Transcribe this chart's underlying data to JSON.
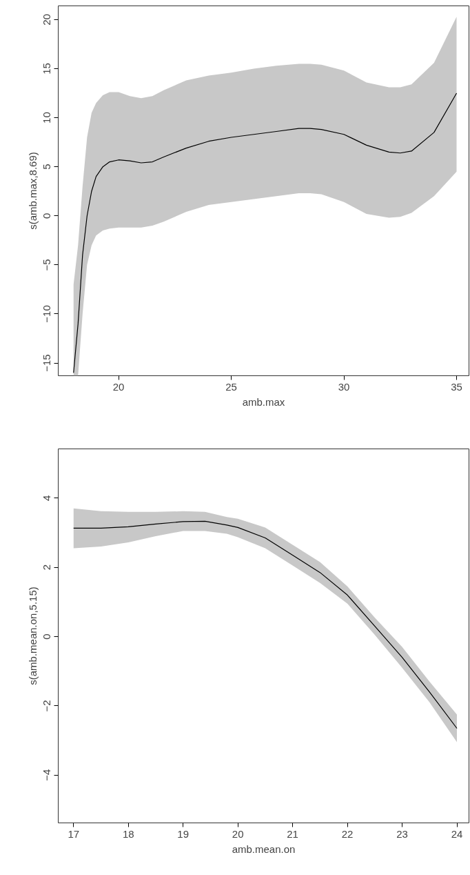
{
  "chart_data": [
    {
      "type": "line",
      "xlabel": "amb.max",
      "ylabel": "s(amb.max,8.69)",
      "xlim": [
        17.32,
        35.55
      ],
      "ylim": [
        -16.3,
        21.4
      ],
      "xticks": [
        20,
        25,
        30,
        35
      ],
      "yticks": [
        -15,
        -10,
        -5,
        0,
        5,
        10,
        15,
        20
      ],
      "grid": false,
      "x": [
        18.0,
        18.2,
        18.4,
        18.6,
        18.8,
        19.0,
        19.3,
        19.6,
        20.0,
        20.5,
        21.0,
        21.5,
        22,
        23,
        24,
        25,
        26,
        27,
        28,
        28.5,
        29,
        30,
        31,
        32,
        32.5,
        33,
        34,
        35
      ],
      "series": [
        {
          "color": "#000000",
          "values": [
            -16,
            -11,
            -4,
            0,
            2.5,
            4,
            5,
            5.5,
            5.7,
            5.6,
            5.4,
            5.5,
            6,
            6.9,
            7.6,
            8,
            8.3,
            8.6,
            8.9,
            8.9,
            8.8,
            8.3,
            7.2,
            6.5,
            6.4,
            6.6,
            8.5,
            12.5
          ],
          "lower": [
            -16.3,
            -16.3,
            -10,
            -5,
            -3,
            -2,
            -1.5,
            -1.3,
            -1.2,
            -1.2,
            -1.2,
            -1.0,
            -0.6,
            0.4,
            1.1,
            1.4,
            1.7,
            2.0,
            2.3,
            2.3,
            2.2,
            1.4,
            0.2,
            -0.2,
            -0.1,
            0.3,
            2,
            4.5
          ],
          "upper": [
            -7,
            -3,
            3,
            8,
            10.5,
            11.5,
            12.3,
            12.6,
            12.6,
            12.2,
            12,
            12.2,
            12.8,
            13.8,
            14.3,
            14.6,
            15,
            15.3,
            15.5,
            15.5,
            15.4,
            14.8,
            13.6,
            13.1,
            13.1,
            13.4,
            15.6,
            20.3
          ]
        }
      ]
    },
    {
      "type": "line",
      "xlabel": "amb.mean.on",
      "ylabel": "s(amb.mean.on,5.15)",
      "xlim": [
        16.72,
        24.22
      ],
      "ylim": [
        -5.38,
        5.42
      ],
      "xticks": [
        17,
        18,
        19,
        20,
        21,
        22,
        23,
        24
      ],
      "yticks": [
        -4,
        -2,
        0,
        2,
        4
      ],
      "grid": false,
      "x": [
        17,
        17.5,
        18,
        18.5,
        19,
        19.4,
        19.8,
        20,
        20.5,
        21,
        21.5,
        22,
        22.5,
        23,
        23.5,
        24
      ],
      "series": [
        {
          "color": "#000000",
          "values": [
            3.13,
            3.13,
            3.17,
            3.25,
            3.32,
            3.33,
            3.22,
            3.15,
            2.85,
            2.35,
            1.85,
            1.2,
            0.3,
            -0.6,
            -1.6,
            -2.65
          ],
          "lower": [
            2.55,
            2.6,
            2.72,
            2.9,
            3.05,
            3.05,
            2.97,
            2.87,
            2.55,
            2.05,
            1.55,
            0.95,
            0.05,
            -0.9,
            -1.9,
            -3.05
          ],
          "upper": [
            3.7,
            3.62,
            3.6,
            3.6,
            3.62,
            3.6,
            3.45,
            3.4,
            3.15,
            2.65,
            2.15,
            1.45,
            0.55,
            -0.3,
            -1.3,
            -2.25
          ]
        }
      ]
    }
  ]
}
